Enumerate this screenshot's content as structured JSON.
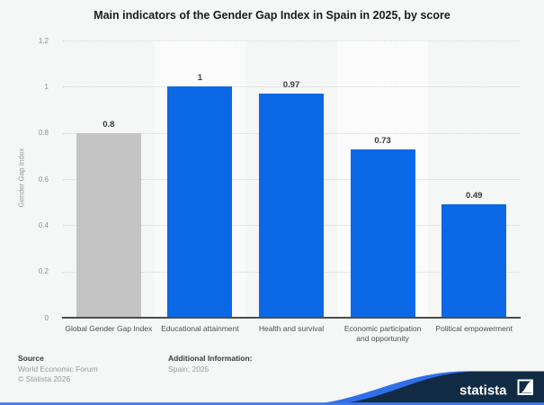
{
  "title": "Main indicators of the Gender Gap Index in Spain in 2025, by score",
  "chart_data": {
    "type": "bar",
    "title": "Main indicators of the Gender Gap Index in Spain in 2025, by score",
    "ylabel": "Gender Gap Index",
    "xlabel": "",
    "categories": [
      "Global Gender Gap Index",
      "Educational attainment",
      "Health and survival",
      "Economic participation and opportunity",
      "Political empowerment"
    ],
    "values": [
      0.8,
      1,
      0.97,
      0.73,
      0.49
    ],
    "value_labels": [
      "0.8",
      "1",
      "0.97",
      "0.73",
      "0.49"
    ],
    "ylim": [
      0,
      1.2
    ],
    "ytick_labels": [
      "0",
      "0.2",
      "0.4",
      "0.6",
      "0.8",
      "1",
      "1.2"
    ],
    "ytick_values": [
      0,
      0.2,
      0.4,
      0.6,
      0.8,
      1,
      1.2
    ],
    "bar_colors": [
      "#c4c4c4",
      "#0b68e6",
      "#0b68e6",
      "#0b68e6",
      "#0b68e6"
    ],
    "grid": "horizontal-dotted",
    "legend": "none"
  },
  "footer": {
    "source_label": "Source",
    "source_value": "World Economic Forum",
    "copyright": "© Statista 2026",
    "additional_label": "Additional Information:",
    "additional_value": "Spain; 2025"
  },
  "brand": {
    "logo_text": "statista",
    "navy": "#112b45",
    "blue": "#2f6fe8",
    "accent_line": "#4079ea"
  }
}
